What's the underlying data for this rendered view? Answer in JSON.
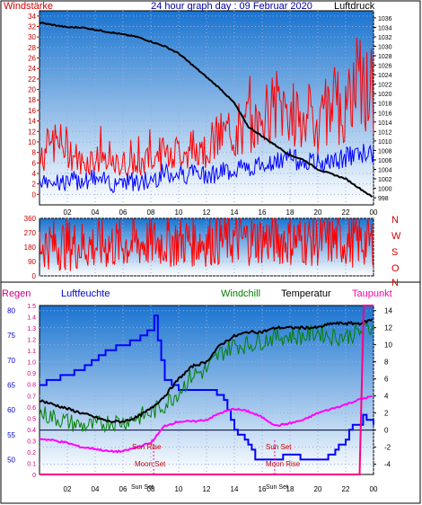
{
  "header": {
    "left_label": "Windstärke",
    "title": "24 hour graph day : 09 Februar 2020",
    "right_label": "Luftdruck"
  },
  "colors": {
    "wind": "#ff0000",
    "pressure": "#000000",
    "gust_base": "#0000ff",
    "humidity": "#0000ff",
    "windchill": "#008000",
    "temperature": "#000000",
    "dewpoint": "#ff00ff",
    "rain": "#ff0088",
    "panel_top": "#1a74d0",
    "panel_bottom": "#ffffff"
  },
  "x_ticks": [
    "02",
    "04",
    "06",
    "08",
    "10",
    "12",
    "14",
    "16",
    "18",
    "20",
    "22",
    "00"
  ],
  "bottom_legend": {
    "rain": "Regen",
    "humidity": "Luftfeuchte",
    "windchill": "Windchill",
    "temperature": "Temperatur",
    "dewpoint": "Taupunkt"
  },
  "annotations": {
    "sun_rise": "Sun Rise",
    "sun_set": "Sun Set",
    "moon_set": "Moon Set",
    "moon_rise": "Moon Rise"
  },
  "direction_letters": [
    "N",
    "W",
    "S",
    "O",
    "N"
  ],
  "chart_data": [
    {
      "type": "line",
      "name": "panel-wind-pressure",
      "y_left": {
        "ticks": [
          0,
          2,
          4,
          6,
          8,
          10,
          12,
          14,
          16,
          18,
          20,
          22,
          24,
          26,
          28,
          30,
          32,
          34
        ],
        "range": [
          -2,
          35
        ]
      },
      "y_right": {
        "ticks": [
          998,
          1000,
          1002,
          1004,
          1006,
          1008,
          1010,
          1012,
          1014,
          1016,
          1018,
          1020,
          1022,
          1024,
          1026,
          1028,
          1030,
          1032,
          1034,
          1036
        ],
        "range": [
          996.5,
          1037.5
        ]
      },
      "x_range_hours": [
        0,
        24
      ],
      "series": [
        {
          "name": "Luftdruck",
          "axis": "right",
          "x": [
            0,
            2,
            3,
            4,
            5,
            6,
            7,
            8,
            9,
            10,
            11,
            12,
            13,
            14,
            15,
            16,
            17,
            18,
            19,
            20,
            21,
            22,
            23,
            24
          ],
          "y": [
            1035,
            1034,
            1034,
            1033.5,
            1033,
            1032.5,
            1032,
            1031,
            1030,
            1028.5,
            1026,
            1023.5,
            1021,
            1018,
            1013,
            1011,
            1009,
            1007,
            1006,
            1004,
            1003,
            1002,
            1000,
            998
          ]
        },
        {
          "name": "Windstärke",
          "axis": "left",
          "x": [
            0,
            1,
            2,
            3,
            4,
            5,
            6,
            7,
            8,
            9,
            10,
            11,
            12,
            13,
            14,
            15,
            16,
            17,
            18,
            19,
            20,
            21,
            22,
            23,
            24
          ],
          "y": [
            6,
            10,
            9,
            6,
            7,
            5,
            6,
            5,
            7,
            8,
            8,
            9,
            9,
            11,
            12,
            13,
            14,
            17,
            16,
            15,
            14,
            16,
            18,
            22,
            17
          ]
        },
        {
          "name": "Windstärke (Minimum)",
          "axis": "left",
          "x": [
            0,
            1,
            2,
            3,
            4,
            5,
            6,
            7,
            8,
            9,
            10,
            11,
            12,
            13,
            14,
            15,
            16,
            17,
            18,
            19,
            20,
            21,
            22,
            23,
            24
          ],
          "y": [
            3,
            3,
            2,
            3,
            3,
            2,
            3,
            2,
            3,
            4,
            4,
            4,
            4,
            4,
            5,
            5,
            6,
            6,
            7,
            6,
            6,
            6,
            7,
            8,
            8
          ]
        }
      ]
    },
    {
      "type": "line",
      "name": "panel-wind-direction",
      "y_left": {
        "ticks": [
          0,
          90,
          180,
          270,
          360
        ],
        "range": [
          0,
          360
        ]
      },
      "x_range_hours": [
        0,
        24
      ],
      "series": [
        {
          "name": "Windrichtung",
          "x": [
            0,
            4,
            8,
            12,
            16,
            20,
            24
          ],
          "y": [
            200,
            190,
            210,
            220,
            230,
            220,
            215
          ]
        }
      ]
    },
    {
      "type": "line",
      "name": "panel-temperature",
      "y_left_rain": {
        "ticks": [
          0,
          0.1,
          0.2,
          0.3,
          0.4,
          0.5,
          0.6,
          0.7,
          0.8,
          0.9,
          1.0,
          1.1,
          1.2,
          1.3,
          1.4,
          1.5
        ],
        "range": [
          0,
          1.5
        ]
      },
      "y_left_humidity": {
        "ticks": [
          50,
          55,
          60,
          65,
          70,
          75,
          80
        ],
        "range": [
          47,
          81
        ]
      },
      "y_right_temp": {
        "ticks": [
          -4,
          -2,
          0,
          2,
          4,
          6,
          8,
          10,
          12,
          14
        ],
        "range": [
          -5.2,
          14.6
        ]
      },
      "x_range_hours": [
        0,
        24
      ],
      "series": [
        {
          "name": "Luftfeuchte",
          "axis": "humidity",
          "x": [
            0,
            1,
            2,
            3,
            4,
            5,
            6,
            7,
            8,
            8.3,
            8.6,
            9,
            9.5,
            10,
            11,
            12,
            13,
            13.5,
            14,
            15,
            15.5,
            16,
            17,
            18,
            19,
            20,
            21,
            22,
            22.5,
            23,
            23.3,
            24
          ],
          "y": [
            65,
            66,
            67,
            68,
            70,
            72,
            73,
            74,
            76,
            79,
            72,
            66,
            65,
            64,
            64,
            64,
            63,
            60,
            56,
            53,
            50,
            49.5,
            50,
            51,
            50,
            49.5,
            51,
            54,
            57,
            57,
            59,
            57
          ]
        },
        {
          "name": "Windchill",
          "axis": "temp",
          "x": [
            0,
            1,
            2,
            3,
            4,
            5,
            6,
            7,
            8,
            9,
            10,
            11,
            12,
            13,
            14,
            15,
            16,
            17,
            18,
            19,
            20,
            21,
            22,
            23,
            24
          ],
          "y": [
            2,
            1.5,
            1,
            0.5,
            0.5,
            1,
            1,
            1.5,
            2,
            3,
            4.5,
            6.5,
            7,
            9,
            10,
            10,
            10.5,
            11,
            11,
            11,
            11.5,
            11,
            11,
            11.5,
            12
          ]
        },
        {
          "name": "Temperatur",
          "axis": "temp",
          "x": [
            0,
            1,
            2,
            3,
            4,
            5,
            6,
            7,
            8,
            9,
            10,
            11,
            12,
            13,
            14,
            15,
            16,
            17,
            18,
            19,
            20,
            21,
            22,
            23,
            24
          ],
          "y": [
            3.5,
            3,
            2.5,
            2,
            1.5,
            1,
            1,
            1.5,
            2.5,
            4,
            6,
            7.5,
            8,
            10,
            11,
            11.5,
            11.5,
            12,
            12,
            12,
            12,
            12.5,
            12.5,
            12.5,
            13
          ]
        },
        {
          "name": "Taupunkt",
          "axis": "temp",
          "x": [
            0,
            1,
            2,
            3,
            4,
            5,
            6,
            7,
            8,
            9,
            10,
            11,
            12,
            13,
            14,
            15,
            16,
            17,
            18,
            19,
            20,
            21,
            22,
            23,
            24
          ],
          "y": [
            -1,
            -1.2,
            -1.5,
            -2,
            -2.2,
            -2.5,
            -2.5,
            -2,
            -1.5,
            0.5,
            1,
            1,
            1.2,
            2,
            2.5,
            2.2,
            1.5,
            0.5,
            0.8,
            1.2,
            2,
            2.5,
            3,
            3.6,
            4
          ]
        },
        {
          "name": "Regen",
          "axis": "rain",
          "x": [
            0,
            23,
            23.3,
            24
          ],
          "y": [
            0,
            0,
            1.5,
            1.5
          ]
        }
      ]
    }
  ]
}
